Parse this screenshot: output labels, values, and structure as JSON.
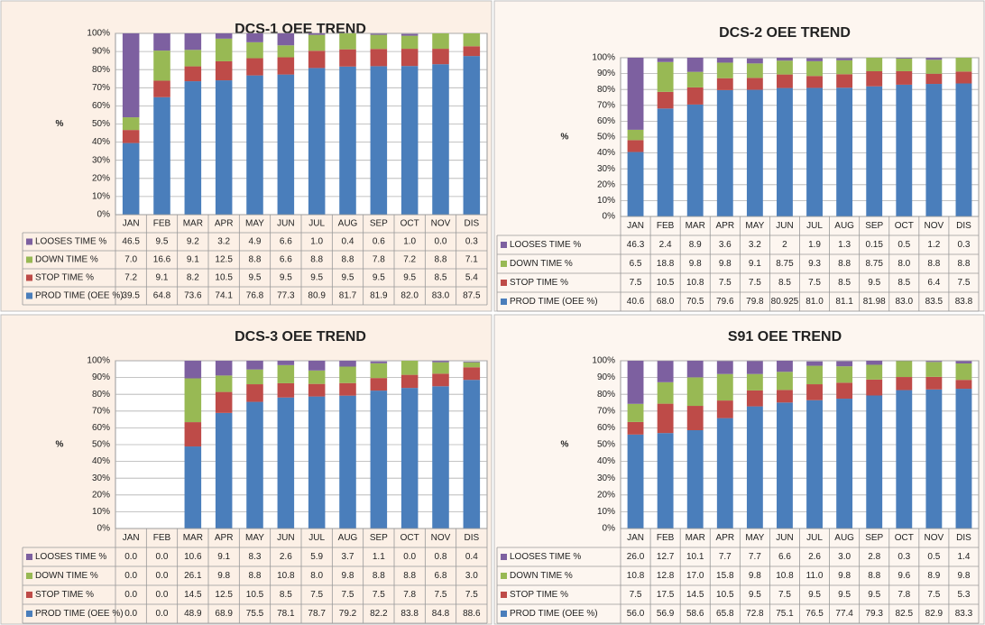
{
  "chart_data": [
    {
      "type": "stacked_bar_100",
      "title": "DCS-1 OEE TREND",
      "y_label": "%",
      "categories": [
        "JAN",
        "FEB",
        "MAR",
        "APR",
        "MAY",
        "JUN",
        "JUL",
        "AUG",
        "SEP",
        "OCT",
        "NOV",
        "DIS"
      ],
      "ylim": [
        0,
        100
      ],
      "yticks": [
        {
          "value": 0,
          "label": "0%"
        },
        {
          "value": 10,
          "label": "10%"
        },
        {
          "value": 20,
          "label": "20%"
        },
        {
          "value": 30,
          "label": "30%"
        },
        {
          "value": 40,
          "label": "40%"
        },
        {
          "value": 50,
          "label": "50%"
        },
        {
          "value": 60,
          "label": "60%"
        },
        {
          "value": 70,
          "label": "70%"
        },
        {
          "value": 80,
          "label": "80%"
        },
        {
          "value": 90,
          "label": "90%"
        },
        {
          "value": 100,
          "label": "100%"
        }
      ],
      "grid": true,
      "series": [
        {
          "name": "PROD TIME (OEE %)",
          "color": "#4a7ebb",
          "values": [
            39.5,
            64.8,
            73.6,
            74.1,
            76.8,
            77.3,
            80.9,
            81.7,
            81.9,
            82.0,
            83.0,
            87.5
          ],
          "value_labels": [
            "39.5",
            "64.8",
            "73.6",
            "74.1",
            "76.8",
            "77.3",
            "80.9",
            "81.7",
            "81.9",
            "82.0",
            "83.0",
            "87.5"
          ]
        },
        {
          "name": "STOP TIME %",
          "color": "#be4b48",
          "values": [
            7.2,
            9.1,
            8.2,
            10.5,
            9.5,
            9.5,
            9.5,
            9.5,
            9.5,
            9.5,
            8.5,
            5.4
          ],
          "value_labels": [
            "7.2",
            "9.1",
            "8.2",
            "10.5",
            "9.5",
            "9.5",
            "9.5",
            "9.5",
            "9.5",
            "9.5",
            "8.5",
            "5.4"
          ]
        },
        {
          "name": "DOWN TIME %",
          "color": "#98b954",
          "values": [
            7.0,
            16.6,
            9.1,
            12.5,
            8.8,
            6.6,
            8.8,
            8.8,
            7.8,
            7.2,
            8.8,
            7.1
          ],
          "value_labels": [
            "7.0",
            "16.6",
            "9.1",
            "12.5",
            "8.8",
            "6.6",
            "8.8",
            "8.8",
            "7.8",
            "7.2",
            "8.8",
            "7.1"
          ]
        },
        {
          "name": "LOOSES TIME %",
          "color": "#7d60a0",
          "values": [
            46.5,
            9.5,
            9.2,
            3.2,
            4.9,
            6.6,
            1.0,
            0.4,
            0.6,
            1.0,
            0.0,
            0.3
          ],
          "value_labels": [
            "46.5",
            "9.5",
            "9.2",
            "3.2",
            "4.9",
            "6.6",
            "1.0",
            "0.4",
            "0.6",
            "1.0",
            "0.0",
            "0.3"
          ]
        }
      ]
    },
    {
      "type": "stacked_bar_100",
      "title": "DCS-2 OEE TREND",
      "y_label": "%",
      "categories": [
        "JAN",
        "FEB",
        "MAR",
        "APR",
        "MAY",
        "JUN",
        "JUL",
        "AUG",
        "SEP",
        "OCT",
        "NOV",
        "DIS"
      ],
      "ylim": [
        0,
        100
      ],
      "yticks": [
        {
          "value": 0,
          "label": "0%"
        },
        {
          "value": 10,
          "label": "10%"
        },
        {
          "value": 20,
          "label": "20%"
        },
        {
          "value": 30,
          "label": "30%"
        },
        {
          "value": 40,
          "label": "40%"
        },
        {
          "value": 50,
          "label": "50%"
        },
        {
          "value": 60,
          "label": "60%"
        },
        {
          "value": 70,
          "label": "70%"
        },
        {
          "value": 80,
          "label": "80%"
        },
        {
          "value": 90,
          "label": "90%"
        },
        {
          "value": 100,
          "label": "100%"
        }
      ],
      "grid": true,
      "series": [
        {
          "name": "PROD TIME (OEE %)",
          "color": "#4a7ebb",
          "values": [
            40.6,
            68.0,
            70.5,
            79.6,
            79.8,
            80.925,
            81.0,
            81.1,
            81.98,
            83.0,
            83.5,
            83.8
          ],
          "value_labels": [
            "40.6",
            "68.0",
            "70.5",
            "79.6",
            "79.8",
            "80.925",
            "81.0",
            "81.1",
            "81.98",
            "83.0",
            "83.5",
            "83.8"
          ]
        },
        {
          "name": "STOP TIME %",
          "color": "#be4b48",
          "values": [
            7.5,
            10.5,
            10.8,
            7.5,
            7.5,
            8.5,
            7.5,
            8.5,
            9.5,
            8.5,
            6.4,
            7.5
          ],
          "value_labels": [
            "7.5",
            "10.5",
            "10.8",
            "7.5",
            "7.5",
            "8.5",
            "7.5",
            "8.5",
            "9.5",
            "8.5",
            "6.4",
            "7.5"
          ]
        },
        {
          "name": "DOWN TIME %",
          "color": "#98b954",
          "values": [
            6.5,
            18.8,
            9.8,
            9.8,
            9.1,
            8.75,
            9.3,
            8.8,
            8.75,
            8.0,
            8.8,
            8.8
          ],
          "value_labels": [
            "6.5",
            "18.8",
            "9.8",
            "9.8",
            "9.1",
            "8.75",
            "9.3",
            "8.8",
            "8.75",
            "8.0",
            "8.8",
            "8.8"
          ]
        },
        {
          "name": "LOOSES TIME %",
          "color": "#7d60a0",
          "values": [
            46.3,
            2.4,
            8.9,
            3.6,
            3.2,
            2,
            1.9,
            1.3,
            0.15,
            0.5,
            1.2,
            0.3
          ],
          "value_labels": [
            "46.3",
            "2.4",
            "8.9",
            "3.6",
            "3.2",
            "2",
            "1.9",
            "1.3",
            "0.15",
            "0.5",
            "1.2",
            "0.3"
          ]
        }
      ]
    },
    {
      "type": "stacked_bar_100",
      "title": "DCS-3 OEE TREND",
      "y_label": "%",
      "categories": [
        "JAN",
        "FEB",
        "MAR",
        "APR",
        "MAY",
        "JUN",
        "JUL",
        "AUG",
        "SEP",
        "OCT",
        "NOV",
        "DIS"
      ],
      "ylim": [
        0,
        100
      ],
      "yticks": [
        {
          "value": 0,
          "label": "0%"
        },
        {
          "value": 10,
          "label": "10%"
        },
        {
          "value": 20,
          "label": "20%"
        },
        {
          "value": 30,
          "label": "30%"
        },
        {
          "value": 40,
          "label": "40%"
        },
        {
          "value": 50,
          "label": "50%"
        },
        {
          "value": 60,
          "label": "60%"
        },
        {
          "value": 70,
          "label": "70%"
        },
        {
          "value": 80,
          "label": "80%"
        },
        {
          "value": 90,
          "label": "90%"
        },
        {
          "value": 100,
          "label": "100%"
        }
      ],
      "grid": true,
      "series": [
        {
          "name": "PROD TIME (OEE %)",
          "color": "#4a7ebb",
          "values": [
            0,
            0,
            48.9,
            68.9,
            75.5,
            78.1,
            78.7,
            79.2,
            82.2,
            83.8,
            84.8,
            88.6
          ],
          "value_labels": [
            "0.0",
            "0.0",
            "48.9",
            "68.9",
            "75.5",
            "78.1",
            "78.7",
            "79.2",
            "82.2",
            "83.8",
            "84.8",
            "88.6"
          ]
        },
        {
          "name": "STOP TIME %",
          "color": "#be4b48",
          "values": [
            0,
            0,
            14.5,
            12.5,
            10.5,
            8.5,
            7.5,
            7.5,
            7.5,
            7.8,
            7.5,
            7.5
          ],
          "value_labels": [
            "0.0",
            "0.0",
            "14.5",
            "12.5",
            "10.5",
            "8.5",
            "7.5",
            "7.5",
            "7.5",
            "7.8",
            "7.5",
            "7.5"
          ]
        },
        {
          "name": "DOWN TIME %",
          "color": "#98b954",
          "values": [
            0,
            0,
            26.1,
            9.8,
            8.8,
            10.8,
            8.0,
            9.8,
            8.8,
            8.8,
            6.8,
            3.0
          ],
          "value_labels": [
            "0.0",
            "0.0",
            "26.1",
            "9.8",
            "8.8",
            "10.8",
            "8.0",
            "9.8",
            "8.8",
            "8.8",
            "6.8",
            "3.0"
          ]
        },
        {
          "name": "LOOSES TIME %",
          "color": "#7d60a0",
          "values": [
            0,
            0,
            10.6,
            9.1,
            8.3,
            2.6,
            5.9,
            3.7,
            1.1,
            0,
            0.8,
            0.4
          ],
          "value_labels": [
            "0.0",
            "0.0",
            "10.6",
            "9.1",
            "8.3",
            "2.6",
            "5.9",
            "3.7",
            "1.1",
            "0.0",
            "0.8",
            "0.4"
          ]
        }
      ]
    },
    {
      "type": "stacked_bar_100",
      "title": "S91 OEE TREND",
      "y_label": "%",
      "categories": [
        "JAN",
        "FEB",
        "MAR",
        "APR",
        "MAY",
        "JUN",
        "JUL",
        "AUG",
        "SEP",
        "OCT",
        "NOV",
        "DIS"
      ],
      "ylim": [
        0,
        100
      ],
      "yticks": [
        {
          "value": 0,
          "label": "0%"
        },
        {
          "value": 10,
          "label": "10%"
        },
        {
          "value": 20,
          "label": "20%"
        },
        {
          "value": 30,
          "label": "30%"
        },
        {
          "value": 40,
          "label": "40%"
        },
        {
          "value": 50,
          "label": "50%"
        },
        {
          "value": 60,
          "label": "60%"
        },
        {
          "value": 70,
          "label": "70%"
        },
        {
          "value": 80,
          "label": "80%"
        },
        {
          "value": 90,
          "label": "90%"
        },
        {
          "value": 100,
          "label": "100%"
        }
      ],
      "grid": true,
      "series": [
        {
          "name": "PROD TIME (OEE %)",
          "color": "#4a7ebb",
          "values": [
            56.0,
            56.9,
            58.6,
            65.8,
            72.8,
            75.1,
            76.5,
            77.4,
            79.3,
            82.5,
            82.9,
            83.3
          ],
          "value_labels": [
            "56.0",
            "56.9",
            "58.6",
            "65.8",
            "72.8",
            "75.1",
            "76.5",
            "77.4",
            "79.3",
            "82.5",
            "82.9",
            "83.3"
          ]
        },
        {
          "name": "STOP TIME %",
          "color": "#be4b48",
          "values": [
            7.5,
            17.5,
            14.5,
            10.5,
            9.5,
            7.5,
            9.5,
            9.5,
            9.5,
            7.8,
            7.5,
            5.3
          ],
          "value_labels": [
            "7.5",
            "17.5",
            "14.5",
            "10.5",
            "9.5",
            "7.5",
            "9.5",
            "9.5",
            "9.5",
            "7.8",
            "7.5",
            "5.3"
          ]
        },
        {
          "name": "DOWN TIME %",
          "color": "#98b954",
          "values": [
            10.8,
            12.8,
            17.0,
            15.8,
            9.8,
            10.8,
            11.0,
            9.8,
            8.8,
            9.6,
            8.9,
            9.8
          ],
          "value_labels": [
            "10.8",
            "12.8",
            "17.0",
            "15.8",
            "9.8",
            "10.8",
            "11.0",
            "9.8",
            "8.8",
            "9.6",
            "8.9",
            "9.8"
          ]
        },
        {
          "name": "LOOSES TIME %",
          "color": "#7d60a0",
          "values": [
            26.0,
            12.7,
            10.1,
            7.7,
            7.7,
            6.6,
            2.6,
            3.0,
            2.8,
            0.3,
            0.5,
            1.4
          ],
          "value_labels": [
            "26.0",
            "12.7",
            "10.1",
            "7.7",
            "7.7",
            "6.6",
            "2.6",
            "3.0",
            "2.8",
            "0.3",
            "0.5",
            "1.4"
          ]
        }
      ]
    }
  ]
}
